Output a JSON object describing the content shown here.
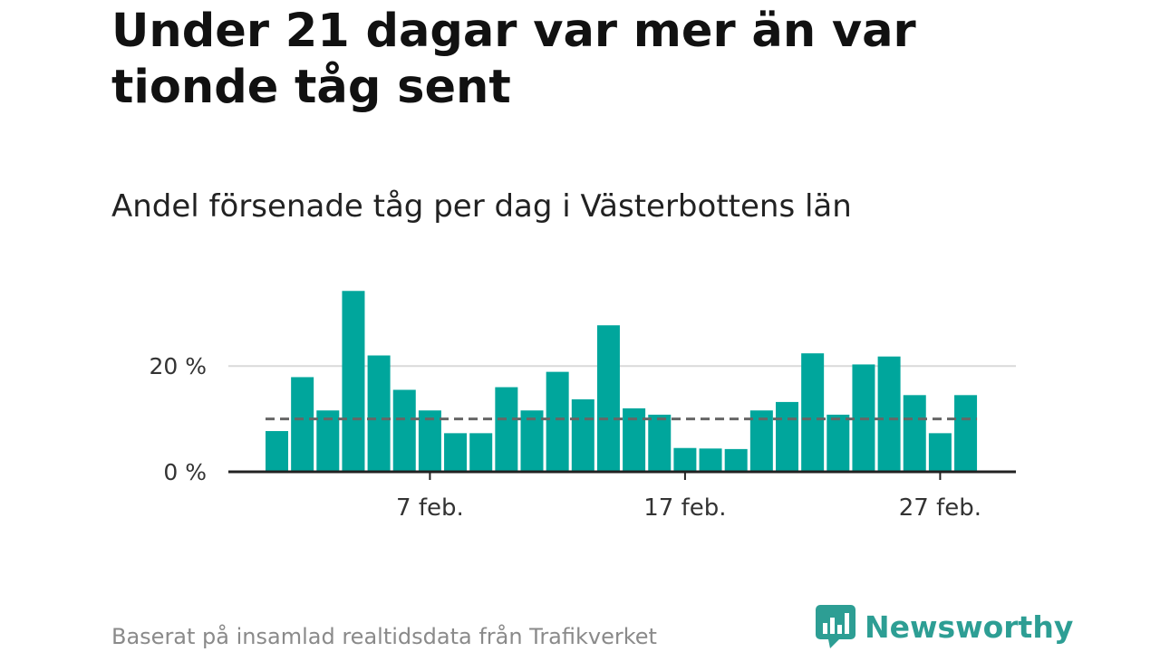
{
  "title": "Under 21 dagar var mer än var tionde tåg sent",
  "subtitle": "Andel försenade tåg per dag i Västerbottens län",
  "source": "Baserat på insamlad realtidsdata från Trafikverket",
  "brand": {
    "name": "Newsworthy",
    "icon": "newsworthy-logo-icon",
    "color": "#2d9e94"
  },
  "colors": {
    "bar": "#00a69c",
    "reference_line": "#666666",
    "grid": "#d9d9d9",
    "axis": "#222222"
  },
  "chart_data": {
    "type": "bar",
    "categories": [
      "1",
      "2",
      "3",
      "4",
      "5",
      "6",
      "7",
      "8",
      "9",
      "10",
      "11",
      "12",
      "13",
      "14",
      "15",
      "16",
      "17",
      "18",
      "19",
      "20",
      "21",
      "22",
      "23",
      "24",
      "25",
      "26",
      "27",
      "28"
    ],
    "values": [
      7.7,
      17.9,
      11.6,
      34.2,
      22.0,
      15.5,
      11.6,
      7.3,
      7.3,
      16.0,
      11.6,
      18.9,
      13.7,
      27.7,
      12.0,
      10.8,
      4.5,
      4.4,
      4.3,
      11.6,
      13.2,
      22.4,
      10.8,
      20.3,
      21.8,
      14.5,
      7.3,
      14.5
    ],
    "x_ticks": [
      {
        "category": "7",
        "label": "7 feb."
      },
      {
        "category": "17",
        "label": "17 feb."
      },
      {
        "category": "27",
        "label": "27 feb."
      }
    ],
    "y_ticks": [
      {
        "value": 0,
        "label": "0 %"
      },
      {
        "value": 20,
        "label": "20 %"
      }
    ],
    "reference_line": 10,
    "ylim": [
      0,
      35
    ],
    "grid": true,
    "legend": false
  }
}
